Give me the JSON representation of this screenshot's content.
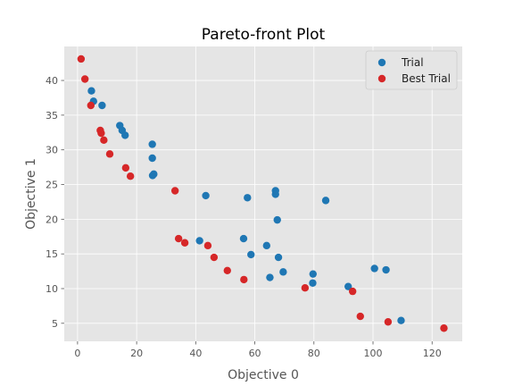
{
  "chart_data": {
    "type": "scatter",
    "title": "Pareto-front Plot",
    "xlabel": "Objective 0",
    "ylabel": "Objective 1",
    "xlim": [
      -4.5,
      130.2
    ],
    "ylim": [
      2.4,
      44.9
    ],
    "xticks": [
      0,
      20,
      40,
      60,
      80,
      100,
      120
    ],
    "yticks": [
      5,
      10,
      15,
      20,
      25,
      30,
      35,
      40
    ],
    "grid": true,
    "legend_position": "upper right",
    "series": [
      {
        "name": "Trial",
        "color": "#1f77b4",
        "points": [
          [
            4.7,
            38.5
          ],
          [
            5.4,
            37.0
          ],
          [
            8.3,
            36.4
          ],
          [
            14.3,
            33.5
          ],
          [
            15.1,
            32.8
          ],
          [
            16.1,
            32.1
          ],
          [
            25.3,
            30.8
          ],
          [
            25.3,
            28.8
          ],
          [
            25.4,
            26.3
          ],
          [
            25.8,
            26.5
          ],
          [
            43.4,
            23.4
          ],
          [
            57.5,
            23.1
          ],
          [
            67.0,
            24.1
          ],
          [
            67.0,
            23.6
          ],
          [
            84.0,
            22.7
          ],
          [
            67.6,
            19.9
          ],
          [
            41.3,
            16.9
          ],
          [
            56.2,
            17.2
          ],
          [
            58.7,
            14.9
          ],
          [
            64.0,
            16.2
          ],
          [
            68.0,
            14.5
          ],
          [
            65.1,
            11.6
          ],
          [
            69.6,
            12.4
          ],
          [
            79.7,
            12.1
          ],
          [
            79.6,
            10.8
          ],
          [
            91.6,
            10.3
          ],
          [
            100.5,
            12.9
          ],
          [
            104.4,
            12.7
          ],
          [
            109.5,
            5.4
          ]
        ]
      },
      {
        "name": "Best Trial",
        "color": "#d62728",
        "points": [
          [
            1.2,
            43.1
          ],
          [
            2.5,
            40.2
          ],
          [
            4.5,
            36.4
          ],
          [
            7.7,
            32.8
          ],
          [
            8.0,
            32.4
          ],
          [
            8.9,
            31.4
          ],
          [
            10.9,
            29.4
          ],
          [
            16.3,
            27.4
          ],
          [
            17.9,
            26.2
          ],
          [
            33.0,
            24.1
          ],
          [
            34.2,
            17.2
          ],
          [
            36.3,
            16.6
          ],
          [
            44.1,
            16.2
          ],
          [
            46.2,
            14.5
          ],
          [
            50.7,
            12.6
          ],
          [
            56.3,
            11.3
          ],
          [
            77.0,
            10.1
          ],
          [
            93.1,
            9.6
          ],
          [
            95.7,
            6.0
          ],
          [
            105.1,
            5.2
          ],
          [
            124.0,
            4.3
          ]
        ]
      }
    ]
  }
}
